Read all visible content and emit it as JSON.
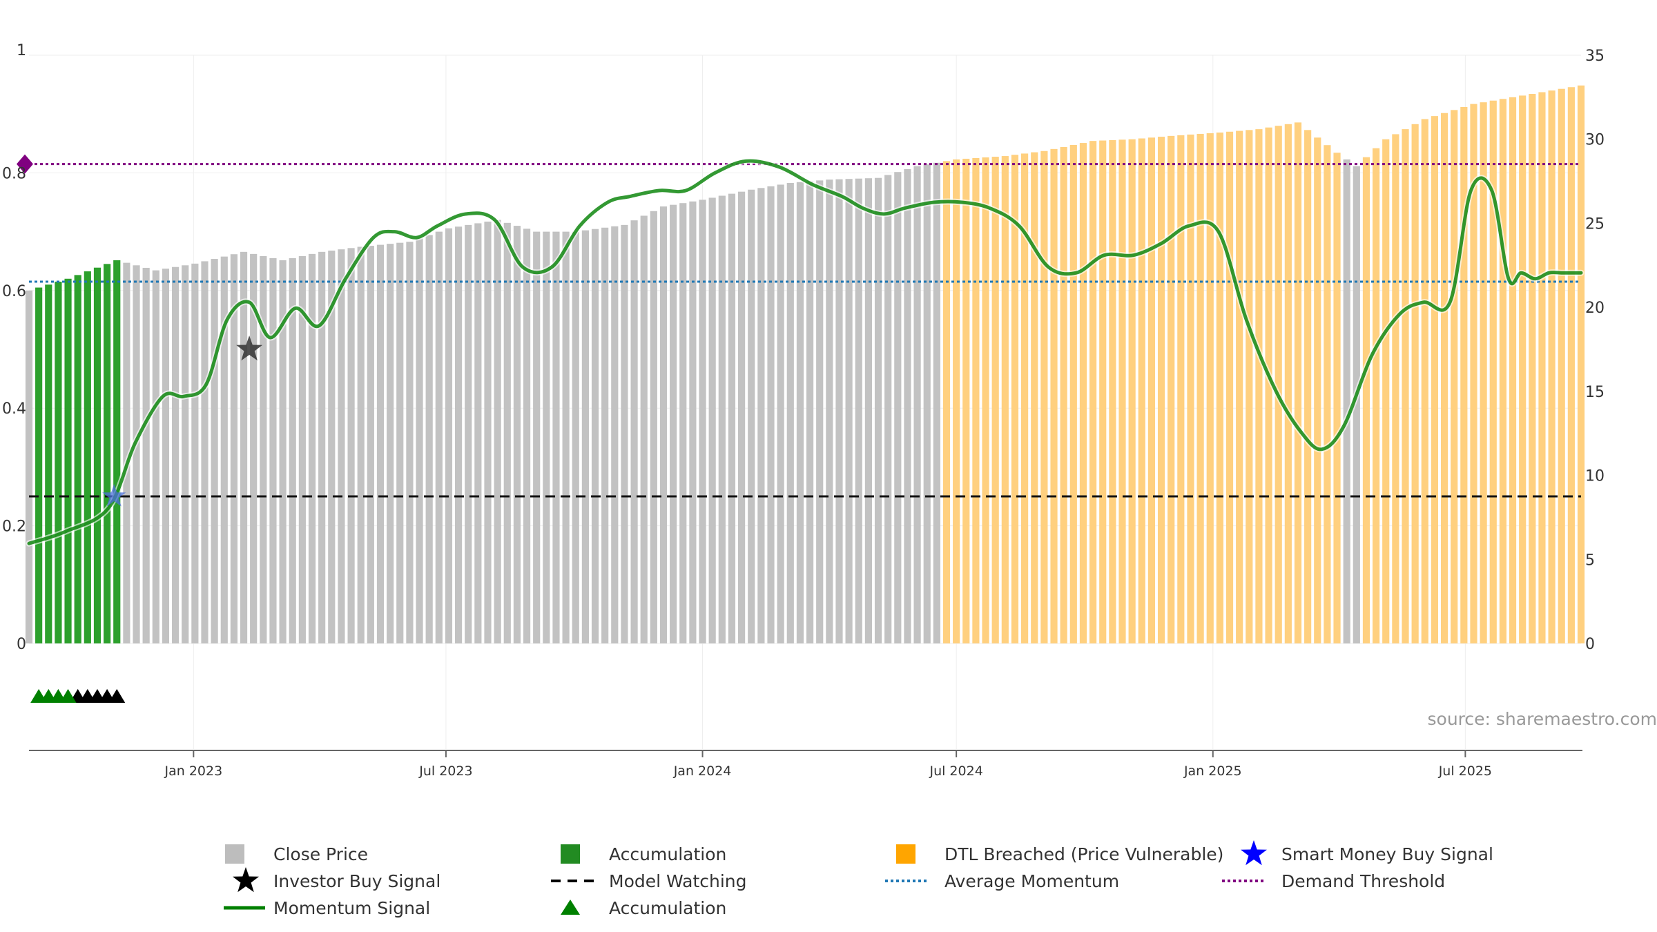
{
  "chart_data": {
    "type": "bar",
    "title": "",
    "xlabel": "",
    "ylabel": "",
    "left_axis": {
      "ylim": [
        0,
        1
      ],
      "ticks": [
        "0",
        "0.2",
        "0.4",
        "0.6",
        "0.8",
        "1"
      ]
    },
    "right_axis": {
      "ylim": [
        0,
        35
      ],
      "ticks": [
        "0",
        "5",
        "10",
        "15",
        "20",
        "25",
        "30",
        "35"
      ]
    },
    "x_ticks": [
      "Jan 2023",
      "Jul 2023",
      "Jan 2024",
      "Jul 2024",
      "Jan 2025",
      "Jul 2025"
    ],
    "x_range": [
      "2022-09-05",
      "2025-09-22"
    ],
    "bar_groups": [
      {
        "name": "Accumulation",
        "color": "#2ca02c",
        "from": "2022-09-12",
        "to": "2022-11-07"
      },
      {
        "name": "Close Price",
        "color": "#c2c2c2",
        "from": "2022-11-14",
        "to": "2024-06-17"
      },
      {
        "name": "DTL Breached (Price Vulnerable)",
        "color": "#ffd07f",
        "from": "2024-06-24",
        "to": "2025-03-31"
      },
      {
        "name": "Close Price",
        "color": "#c2c2c2",
        "from": "2025-04-07",
        "to": "2025-04-14"
      },
      {
        "name": "DTL Breached (Price Vulnerable)",
        "color": "#ffd07f",
        "from": "2025-04-21",
        "to": "2025-09-22"
      }
    ],
    "close_price": {
      "name": "Close Price",
      "x": [
        "2022-09-05",
        "2022-10-03",
        "2022-11-07",
        "2022-12-05",
        "2023-01-02",
        "2023-02-06",
        "2023-03-06",
        "2023-04-03",
        "2023-05-01",
        "2023-06-05",
        "2023-07-03",
        "2023-08-07",
        "2023-09-04",
        "2023-10-02",
        "2023-11-06",
        "2023-12-04",
        "2024-01-01",
        "2024-02-05",
        "2024-03-04",
        "2024-04-01",
        "2024-05-06",
        "2024-06-03",
        "2024-07-01",
        "2024-08-05",
        "2024-09-02",
        "2024-10-07",
        "2024-11-04",
        "2024-12-02",
        "2025-01-06",
        "2025-02-03",
        "2025-03-03",
        "2025-03-31",
        "2025-04-14",
        "2025-05-05",
        "2025-06-02",
        "2025-07-07",
        "2025-08-04",
        "2025-09-01",
        "2025-09-22"
      ],
      "values": [
        21.0,
        21.7,
        22.8,
        22.2,
        22.6,
        23.3,
        22.8,
        23.3,
        23.6,
        23.9,
        24.7,
        25.2,
        24.5,
        24.5,
        24.9,
        26.0,
        26.4,
        27.0,
        27.4,
        27.6,
        27.7,
        28.4,
        28.8,
        29.0,
        29.3,
        29.9,
        30.0,
        30.2,
        30.4,
        30.6,
        31.0,
        29.2,
        28.4,
        30.0,
        31.2,
        32.1,
        32.5,
        32.9,
        33.2
      ]
    },
    "momentum_signal": {
      "name": "Momentum Signal",
      "color": "#008000",
      "x": [
        "2022-09-05",
        "2022-10-01",
        "2022-11-01",
        "2022-11-20",
        "2022-12-10",
        "2022-12-25",
        "2023-01-10",
        "2023-01-25",
        "2023-02-10",
        "2023-02-25",
        "2023-03-15",
        "2023-04-01",
        "2023-04-20",
        "2023-05-10",
        "2023-05-25",
        "2023-06-10",
        "2023-06-25",
        "2023-07-15",
        "2023-08-05",
        "2023-08-25",
        "2023-09-15",
        "2023-10-05",
        "2023-10-25",
        "2023-11-10",
        "2023-12-01",
        "2023-12-20",
        "2024-01-10",
        "2024-02-01",
        "2024-02-25",
        "2024-03-20",
        "2024-04-10",
        "2024-04-25",
        "2024-05-10",
        "2024-05-25",
        "2024-06-15",
        "2024-07-05",
        "2024-07-25",
        "2024-08-15",
        "2024-09-05",
        "2024-09-25",
        "2024-10-15",
        "2024-11-05",
        "2024-11-25",
        "2024-12-15",
        "2025-01-05",
        "2025-01-25",
        "2025-02-15",
        "2025-03-05",
        "2025-03-20",
        "2025-04-05",
        "2025-04-25",
        "2025-05-15",
        "2025-06-01",
        "2025-06-20",
        "2025-07-05",
        "2025-07-20",
        "2025-08-01",
        "2025-08-10",
        "2025-08-20",
        "2025-08-30",
        "2025-09-08",
        "2025-09-15",
        "2025-09-22"
      ],
      "values": [
        0.17,
        0.19,
        0.23,
        0.34,
        0.42,
        0.42,
        0.44,
        0.55,
        0.58,
        0.52,
        0.57,
        0.54,
        0.62,
        0.69,
        0.7,
        0.69,
        0.71,
        0.73,
        0.72,
        0.64,
        0.64,
        0.71,
        0.75,
        0.76,
        0.77,
        0.77,
        0.8,
        0.82,
        0.81,
        0.78,
        0.76,
        0.74,
        0.73,
        0.74,
        0.75,
        0.75,
        0.74,
        0.71,
        0.64,
        0.63,
        0.66,
        0.66,
        0.68,
        0.71,
        0.7,
        0.55,
        0.43,
        0.36,
        0.33,
        0.37,
        0.49,
        0.56,
        0.58,
        0.58,
        0.77,
        0.77,
        0.62,
        0.63,
        0.62,
        0.63,
        0.63,
        0.63,
        0.63
      ]
    },
    "model_watching": {
      "name": "Model Watching",
      "value": 0.25,
      "color": "#111111"
    },
    "average_momentum": {
      "name": "Average Momentum",
      "value": 0.615,
      "color": "#1f77b4"
    },
    "demand_threshold": {
      "name": "Demand Threshold",
      "value": 0.815,
      "color": "#800080"
    },
    "investor_buy_signal": {
      "name": "Investor Buy Signal",
      "x": [
        "2023-02-10"
      ],
      "values": [
        0.5
      ]
    },
    "smart_money_buy_signal": {
      "name": "Smart Money Buy Signal",
      "x": [
        "2022-11-05"
      ],
      "values": [
        0.25
      ]
    },
    "accumulation_markers": {
      "name": "Accumulation",
      "green_x": [
        "2022-09-12",
        "2022-09-19",
        "2022-09-26",
        "2022-10-03"
      ],
      "black_x": [
        "2022-10-10",
        "2022-10-17",
        "2022-10-24",
        "2022-10-31",
        "2022-11-07"
      ]
    },
    "source": "source: sharemaestro.com",
    "legend": {
      "columns": [
        [
          {
            "label": "Close Price",
            "marker": "square",
            "color": "#bdbdbd"
          },
          {
            "label": "Investor Buy Signal",
            "marker": "star",
            "color": "#000000"
          },
          {
            "label": "Momentum Signal",
            "marker": "line",
            "color": "#008000"
          }
        ],
        [
          {
            "label": "Accumulation",
            "marker": "square",
            "color": "#228b22"
          },
          {
            "label": "Model Watching",
            "marker": "dash",
            "color": "#000000"
          },
          {
            "label": "Accumulation",
            "marker": "triangle",
            "color": "#008000"
          }
        ],
        [
          {
            "label": "DTL Breached (Price Vulnerable)",
            "marker": "square",
            "color": "#ffa500"
          },
          {
            "label": "Average Momentum",
            "marker": "dotted",
            "color": "#1f77b4"
          }
        ],
        [
          {
            "label": "Smart Money Buy Signal",
            "marker": "star",
            "color": "#0000ff"
          },
          {
            "label": "Demand Threshold",
            "marker": "dotted",
            "color": "#800080"
          }
        ]
      ]
    }
  }
}
